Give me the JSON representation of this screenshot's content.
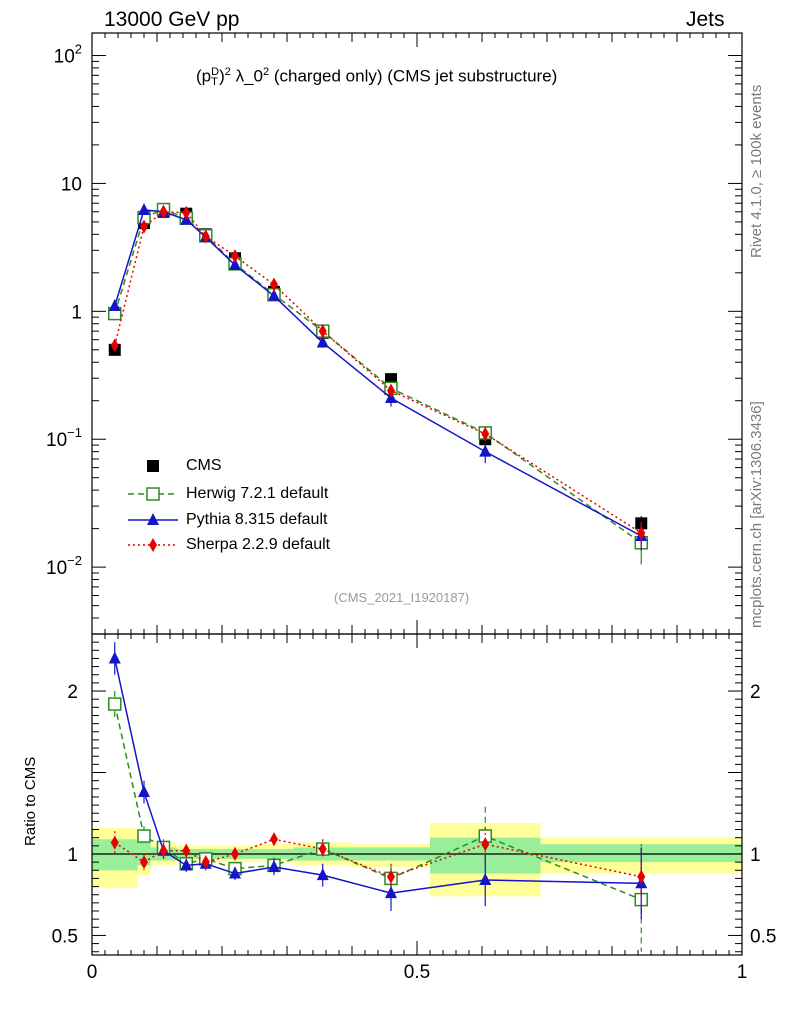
{
  "header": {
    "left": "13000 GeV pp",
    "right": "Jets"
  },
  "side_labels": {
    "rivet": "Rivet 4.1.0, ≥ 100k events",
    "mcplots": "mcplots.cern.ch [arXiv:1306.3436]"
  },
  "chart_data": {
    "type": "scatter",
    "title": "(p_T^D)^2 λ_0^2 (charged only) (CMS jet substructure)",
    "title_parts": {
      "base": "(p",
      "sup1": "D",
      "sub1": "T",
      "close": ")",
      "sup2": "2",
      "mid": " λ_0",
      "sup3": "2",
      "rest": " (charged only) (CMS jet substructure)"
    },
    "analysis_id": "(CMS_2021_I1920187)",
    "xlim": [
      0,
      1
    ],
    "x_ticks": [
      {
        "v": 0,
        "label": "0"
      },
      {
        "v": 0.5,
        "label": "0.5"
      },
      {
        "v": 1,
        "label": "1"
      }
    ],
    "main": {
      "yscale": "log",
      "ylim": [
        0.003,
        150
      ],
      "y_ticks": [
        {
          "v": 0.01,
          "base": "10",
          "exp": "−2"
        },
        {
          "v": 0.1,
          "base": "10",
          "exp": "−1"
        },
        {
          "v": 1,
          "base": "1",
          "exp": ""
        },
        {
          "v": 10,
          "base": "10",
          "exp": ""
        },
        {
          "v": 100,
          "base": "10",
          "exp": "2"
        }
      ]
    },
    "ratio": {
      "ylabel": "Ratio to CMS",
      "ylim": [
        0.38,
        2.35
      ],
      "y_ticks": [
        {
          "v": 0.5,
          "label": "0.5"
        },
        {
          "v": 1,
          "label": "1"
        },
        {
          "v": 2,
          "label": "2"
        }
      ],
      "bands": [
        {
          "x0": 0.0,
          "x1": 0.07,
          "inner": [
            0.9,
            1.09
          ],
          "outer": [
            0.79,
            1.16
          ]
        },
        {
          "x0": 0.07,
          "x1": 0.09,
          "inner": [
            0.93,
            1.08
          ],
          "outer": [
            0.87,
            1.14
          ]
        },
        {
          "x0": 0.09,
          "x1": 0.13,
          "inner": [
            0.96,
            1.04
          ],
          "outer": [
            0.93,
            1.07
          ]
        },
        {
          "x0": 0.13,
          "x1": 0.16,
          "inner": [
            0.97,
            1.03
          ],
          "outer": [
            0.95,
            1.05
          ]
        },
        {
          "x0": 0.16,
          "x1": 0.19,
          "inner": [
            0.97,
            1.03
          ],
          "outer": [
            0.95,
            1.05
          ]
        },
        {
          "x0": 0.19,
          "x1": 0.25,
          "inner": [
            0.97,
            1.03
          ],
          "outer": [
            0.95,
            1.05
          ]
        },
        {
          "x0": 0.25,
          "x1": 0.31,
          "inner": [
            0.97,
            1.03
          ],
          "outer": [
            0.95,
            1.06
          ]
        },
        {
          "x0": 0.31,
          "x1": 0.4,
          "inner": [
            0.96,
            1.04
          ],
          "outer": [
            0.93,
            1.07
          ]
        },
        {
          "x0": 0.4,
          "x1": 0.52,
          "inner": [
            0.96,
            1.04
          ],
          "outer": [
            0.92,
            1.06
          ]
        },
        {
          "x0": 0.52,
          "x1": 0.69,
          "inner": [
            0.88,
            1.1
          ],
          "outer": [
            0.74,
            1.19
          ]
        },
        {
          "x0": 0.69,
          "x1": 1.0,
          "inner": [
            0.95,
            1.06
          ],
          "outer": [
            0.88,
            1.1
          ]
        }
      ]
    },
    "series": [
      {
        "name": "CMS",
        "label": "CMS",
        "color": "#000000",
        "marker": "square",
        "line": "none",
        "x": [
          0.035,
          0.08,
          0.11,
          0.145,
          0.175,
          0.22,
          0.28,
          0.355,
          0.46,
          0.605,
          0.845
        ],
        "y": [
          0.5,
          4.9,
          6.0,
          5.8,
          4.0,
          2.6,
          1.42,
          0.68,
          0.295,
          0.1,
          0.022
        ],
        "yerr": [
          0.05,
          0.3,
          0.3,
          0.25,
          0.2,
          0.12,
          0.08,
          0.04,
          0.02,
          0.01,
          0.003
        ],
        "ratio": [
          1,
          1,
          1,
          1,
          1,
          1,
          1,
          1,
          1,
          1,
          1
        ]
      },
      {
        "name": "Herwig",
        "label": "Herwig 7.2.1 default",
        "color": "#2e8b1e",
        "marker": "open-square",
        "line": "dashed",
        "x": [
          0.035,
          0.08,
          0.11,
          0.145,
          0.175,
          0.22,
          0.28,
          0.355,
          0.46,
          0.605,
          0.845
        ],
        "y": [
          0.96,
          5.4,
          6.25,
          5.35,
          3.9,
          2.35,
          1.35,
          0.7,
          0.25,
          0.112,
          0.0155
        ],
        "yerr": [
          0.06,
          0.3,
          0.3,
          0.25,
          0.2,
          0.12,
          0.08,
          0.04,
          0.02,
          0.015,
          0.005
        ],
        "ratio": [
          1.92,
          1.11,
          1.04,
          0.94,
          0.97,
          0.91,
          0.93,
          1.03,
          0.85,
          1.11,
          0.72
        ],
        "ratio_err": [
          0.08,
          0.06,
          0.05,
          0.04,
          0.04,
          0.04,
          0.05,
          0.06,
          0.08,
          0.18,
          0.32
        ]
      },
      {
        "name": "Pythia",
        "label": "Pythia 8.315 default",
        "color": "#1414c8",
        "marker": "triangle",
        "line": "solid",
        "x": [
          0.035,
          0.08,
          0.11,
          0.145,
          0.175,
          0.22,
          0.28,
          0.355,
          0.46,
          0.605,
          0.845
        ],
        "y": [
          1.1,
          6.2,
          6.0,
          5.2,
          3.8,
          2.3,
          1.32,
          0.57,
          0.21,
          0.08,
          0.0175
        ],
        "yerr": [
          0.06,
          0.3,
          0.3,
          0.25,
          0.2,
          0.12,
          0.08,
          0.05,
          0.03,
          0.015,
          0.004
        ],
        "ratio": [
          2.2,
          1.38,
          1.02,
          0.93,
          0.94,
          0.88,
          0.92,
          0.87,
          0.76,
          0.84,
          0.82
        ],
        "ratio_err": [
          0.1,
          0.07,
          0.05,
          0.04,
          0.04,
          0.04,
          0.05,
          0.07,
          0.11,
          0.16,
          0.22
        ]
      },
      {
        "name": "Sherpa",
        "label": "Sherpa 2.2.9 default",
        "color": "#e60000",
        "marker": "diamond",
        "line": "dotted",
        "x": [
          0.035,
          0.08,
          0.11,
          0.145,
          0.175,
          0.22,
          0.28,
          0.355,
          0.46,
          0.605,
          0.845
        ],
        "y": [
          0.54,
          4.6,
          6.0,
          5.9,
          3.85,
          2.7,
          1.62,
          0.7,
          0.24,
          0.11,
          0.0185
        ],
        "yerr": [
          0.04,
          0.3,
          0.3,
          0.25,
          0.2,
          0.12,
          0.08,
          0.04,
          0.02,
          0.012,
          0.004
        ],
        "ratio": [
          1.07,
          0.95,
          1.02,
          1.02,
          0.95,
          1.0,
          1.09,
          1.03,
          0.86,
          1.06,
          0.86
        ],
        "ratio_err": [
          0.07,
          0.05,
          0.04,
          0.04,
          0.04,
          0.04,
          0.04,
          0.06,
          0.08,
          0.1,
          0.2
        ]
      }
    ],
    "legend": {
      "position": "lower-left"
    }
  }
}
